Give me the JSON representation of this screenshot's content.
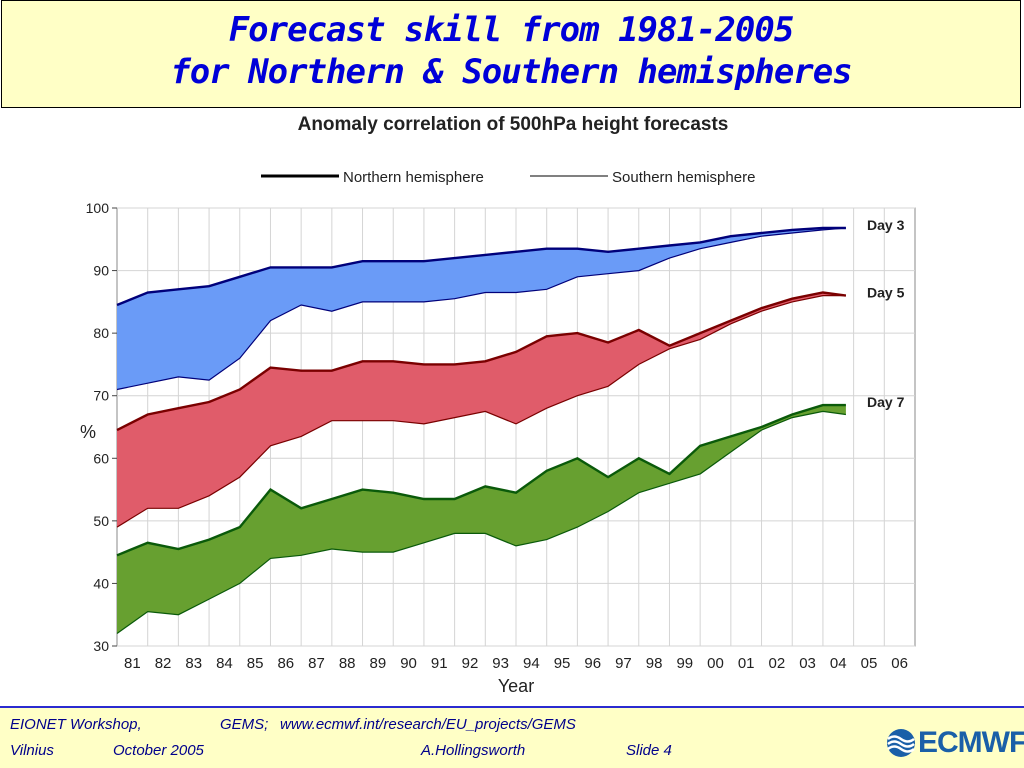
{
  "slide": {
    "title_line1": "Forecast skill from 1981-2005",
    "title_line2": "for Northern & Southern hemispheres"
  },
  "footer": {
    "workshop": "EIONET Workshop,",
    "gems_label": "GEMS;",
    "gems_url": "www.ecmwf.int/research/EU_projects/GEMS",
    "location": "Vilnius",
    "date": "October  2005",
    "author": "A.Hollingsworth",
    "slide_number": "Slide 4",
    "logo_text": "ECMWF"
  },
  "colors": {
    "title": "#0000d8",
    "title_bg": "#ffffc6",
    "day3_fill": "#6a9bf7",
    "day5_fill": "#e05c6a",
    "day7_fill": "#67a030",
    "day3_line": "#00007a",
    "day5_line": "#7a0000",
    "day7_line": "#0a5a0a"
  },
  "chart_data": {
    "type": "area",
    "title": "Anomaly correlation of 500hPa height forecasts",
    "xlabel": "Year",
    "ylabel": "%",
    "ylim": [
      30,
      100
    ],
    "xlim": [
      1981,
      2007
    ],
    "yticks": [
      30,
      40,
      50,
      60,
      70,
      80,
      90,
      100
    ],
    "xtick_labels": [
      "81",
      "82",
      "83",
      "84",
      "85",
      "86",
      "87",
      "88",
      "89",
      "90",
      "91",
      "92",
      "93",
      "94",
      "95",
      "96",
      "97",
      "98",
      "99",
      "00",
      "01",
      "02",
      "03",
      "04",
      "05",
      "06"
    ],
    "grid": true,
    "legend": {
      "placement": "top",
      "entries": [
        {
          "name": "Northern hemisphere",
          "style": "thick"
        },
        {
          "name": "Southern hemisphere",
          "style": "thin"
        }
      ]
    },
    "bands": [
      {
        "label": "Day 3",
        "x": [
          1981,
          1982,
          1983,
          1984,
          1985,
          1986,
          1987,
          1988,
          1989,
          1990,
          1991,
          1992,
          1993,
          1994,
          1995,
          1996,
          1997,
          1998,
          1999,
          2000,
          2001,
          2002,
          2003,
          2004,
          2004.75
        ],
        "northern": [
          84.5,
          86.5,
          87,
          87.5,
          89,
          90.5,
          90.5,
          90.5,
          91.5,
          91.5,
          91.5,
          92,
          92.5,
          93,
          93.5,
          93.5,
          93,
          93.5,
          94,
          94.5,
          95.5,
          96,
          96.5,
          96.8,
          96.8
        ],
        "southern": [
          71,
          72,
          73,
          72.5,
          76,
          82,
          84.5,
          83.5,
          85,
          85,
          85,
          85.5,
          86.5,
          86.5,
          87,
          89,
          89.5,
          90,
          92,
          93.5,
          94.5,
          95.5,
          96,
          96.5,
          96.8
        ]
      },
      {
        "label": "Day 5",
        "x": [
          1981,
          1982,
          1983,
          1984,
          1985,
          1986,
          1987,
          1988,
          1989,
          1990,
          1991,
          1992,
          1993,
          1994,
          1995,
          1996,
          1997,
          1998,
          1999,
          2000,
          2001,
          2002,
          2003,
          2004,
          2004.75
        ],
        "northern": [
          64.5,
          67,
          68,
          69,
          71,
          74.5,
          74,
          74,
          75.5,
          75.5,
          75,
          75,
          75.5,
          77,
          79.5,
          80,
          78.5,
          80.5,
          78,
          80,
          82,
          84,
          85.5,
          86.5,
          86
        ],
        "southern": [
          49,
          52,
          52,
          54,
          57,
          62,
          63.5,
          66,
          66,
          66,
          65.5,
          66.5,
          67.5,
          65.5,
          68,
          70,
          71.5,
          75,
          77.5,
          79,
          81.5,
          83.5,
          85,
          86,
          86
        ]
      },
      {
        "label": "Day 7",
        "x": [
          1981,
          1982,
          1983,
          1984,
          1985,
          1986,
          1987,
          1988,
          1989,
          1990,
          1991,
          1992,
          1993,
          1994,
          1995,
          1996,
          1997,
          1998,
          1999,
          2000,
          2001,
          2002,
          2003,
          2004,
          2004.75
        ],
        "northern": [
          44.5,
          46.5,
          45.5,
          47,
          49,
          55,
          52,
          53.5,
          55,
          54.5,
          53.5,
          53.5,
          55.5,
          54.5,
          58,
          60,
          57,
          60,
          57.5,
          62,
          63.5,
          65,
          67,
          68.5,
          68.5
        ],
        "southern": [
          32,
          35.5,
          35,
          37.5,
          40,
          44,
          44.5,
          45.5,
          45,
          45,
          46.5,
          48,
          48,
          46,
          47,
          49,
          51.5,
          54.5,
          56,
          57.5,
          61,
          64.5,
          66.5,
          67.5,
          67
        ]
      }
    ]
  }
}
